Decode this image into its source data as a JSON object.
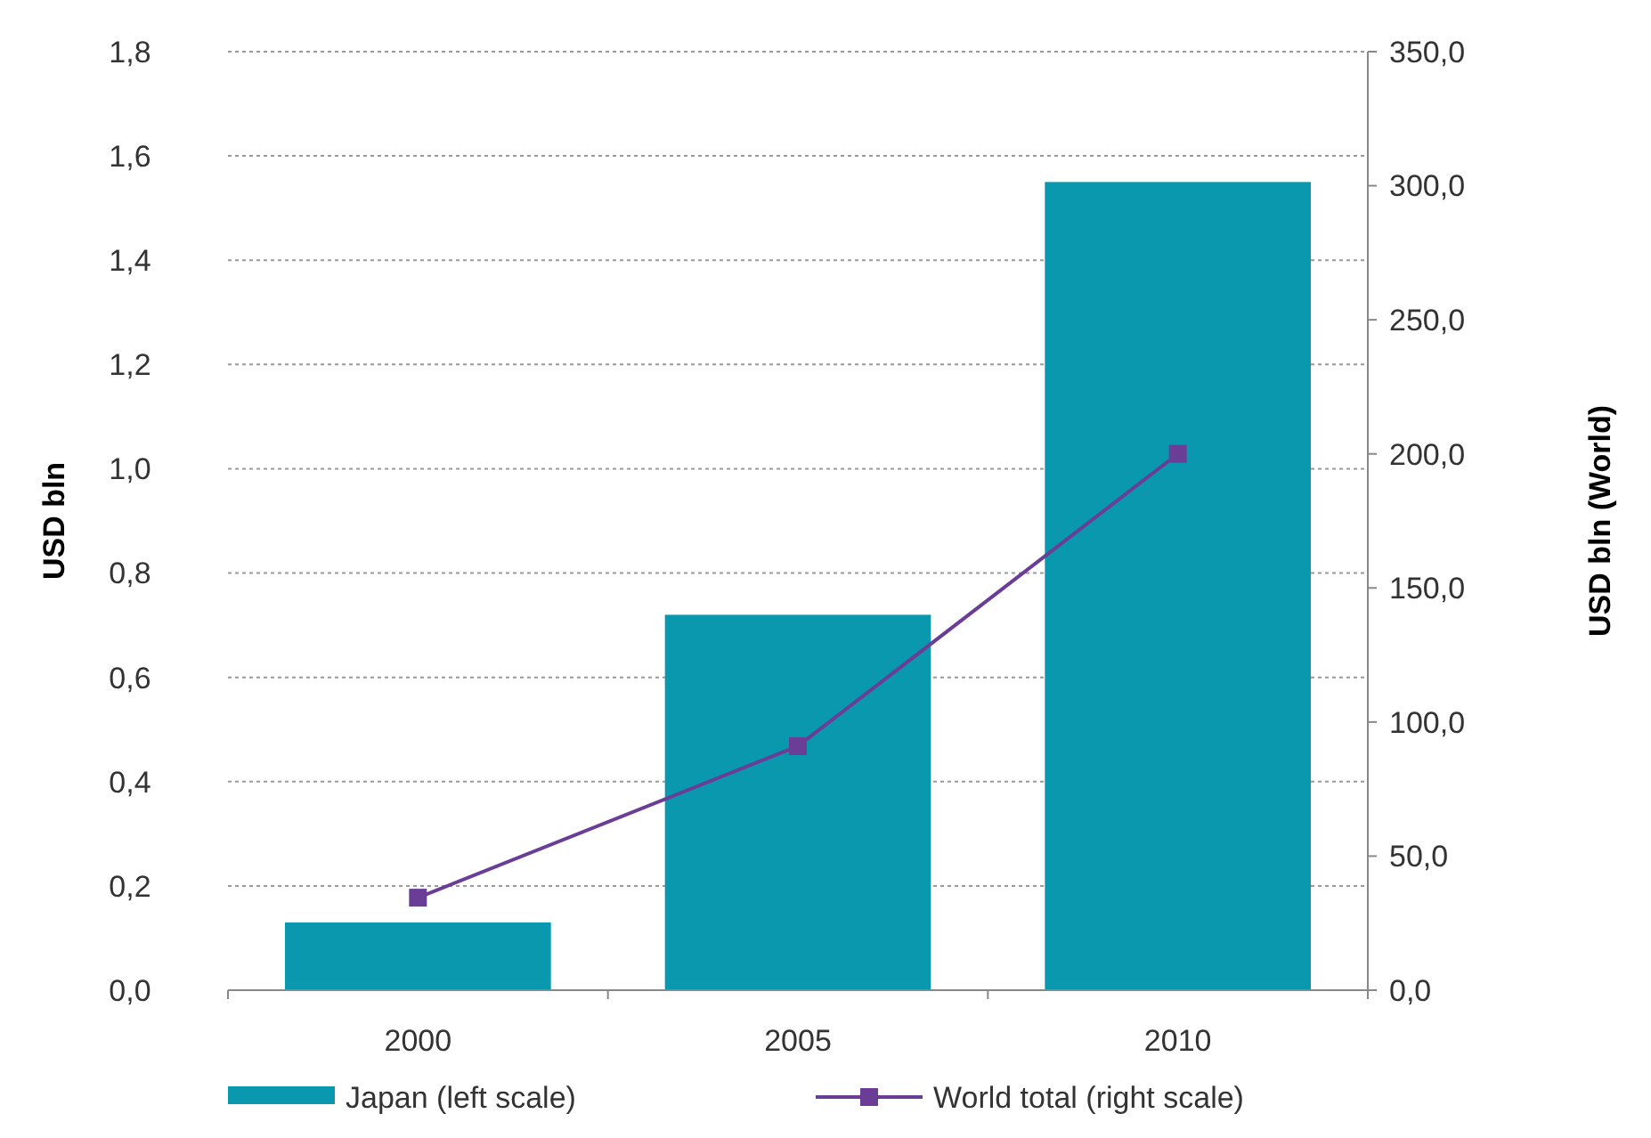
{
  "chart_data": {
    "type": "bar",
    "categories": [
      "2000",
      "2005",
      "2010"
    ],
    "series": [
      {
        "name": "Japan (left scale)",
        "color": "#0a98ae",
        "values": [
          0.13,
          0.72,
          1.55
        ]
      },
      {
        "name": "World total (right scale)",
        "type": "line",
        "axis": "y2",
        "color": "#6a3d96",
        "values": [
          34.5,
          91,
          200
        ],
        "marker": "square"
      }
    ],
    "ylabel": "USD bln",
    "y2label": "USD bln (World)",
    "ylim": [
      0,
      1.8
    ],
    "yticks": [
      {
        "value": 0,
        "label": "0,0"
      },
      {
        "value": 0.2,
        "label": "0,2"
      },
      {
        "value": 0.4,
        "label": "0,4"
      },
      {
        "value": 0.6,
        "label": "0,6"
      },
      {
        "value": 0.8,
        "label": "0,8"
      },
      {
        "value": 1,
        "label": "1,0"
      },
      {
        "value": 1.2,
        "label": "1,2"
      },
      {
        "value": 1.4,
        "label": "1,4"
      },
      {
        "value": 1.6,
        "label": "1,6"
      },
      {
        "value": 1.8,
        "label": "1,8"
      }
    ],
    "y2lim": [
      0,
      350
    ],
    "y2ticks": [
      {
        "value": 0,
        "label": "0,0"
      },
      {
        "value": 50,
        "label": "50,0"
      },
      {
        "value": 100,
        "label": "100,0"
      },
      {
        "value": 150,
        "label": "150,0"
      },
      {
        "value": 200,
        "label": "200,0"
      },
      {
        "value": 250,
        "label": "250,0"
      },
      {
        "value": 300,
        "label": "300,0"
      },
      {
        "value": 350,
        "label": "350,0"
      }
    ],
    "grid": "y",
    "legend": "bottom"
  }
}
